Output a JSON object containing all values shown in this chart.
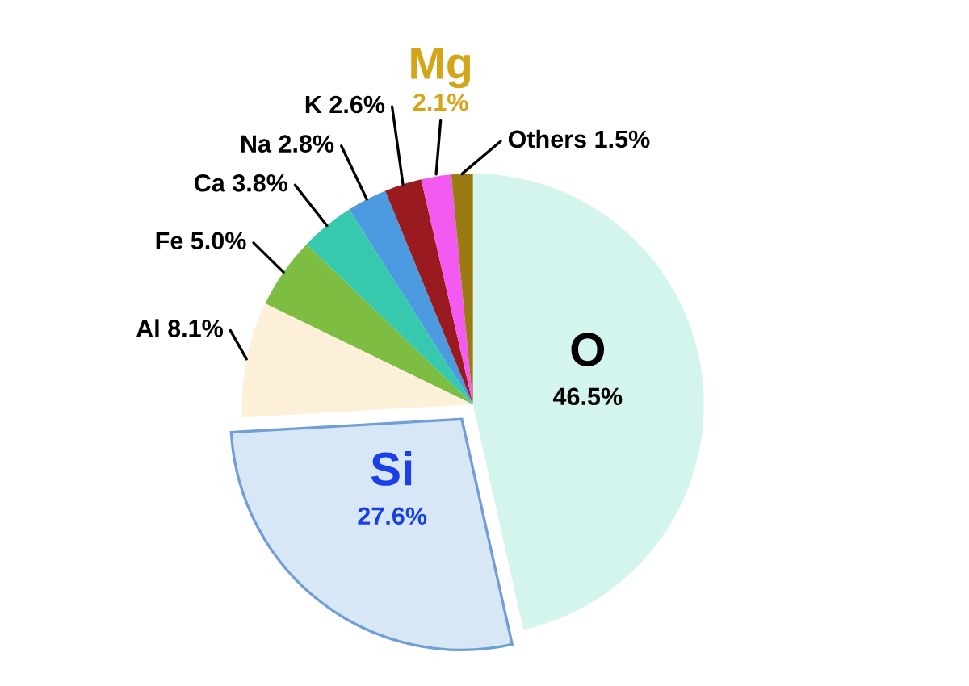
{
  "chart_data": {
    "type": "pie",
    "categories": [
      "O",
      "Si",
      "Al",
      "Fe",
      "Ca",
      "Na",
      "K",
      "Mg",
      "Others"
    ],
    "values": [
      46.5,
      27.6,
      8.1,
      5.0,
      3.8,
      2.8,
      2.6,
      2.1,
      1.5
    ],
    "colors": [
      "#d4f4ee",
      "#d8e7f6",
      "#fcf0d8",
      "#7cbd42",
      "#36c9ad",
      "#4c9be0",
      "#9a1b1f",
      "#f25af0",
      "#9b7a12"
    ],
    "value_labels": [
      "46.5%",
      "27.6%",
      "8.1%",
      "5.0%",
      "3.8%",
      "2.8%",
      "2.6%",
      "2.1%",
      "1.5%"
    ]
  }
}
